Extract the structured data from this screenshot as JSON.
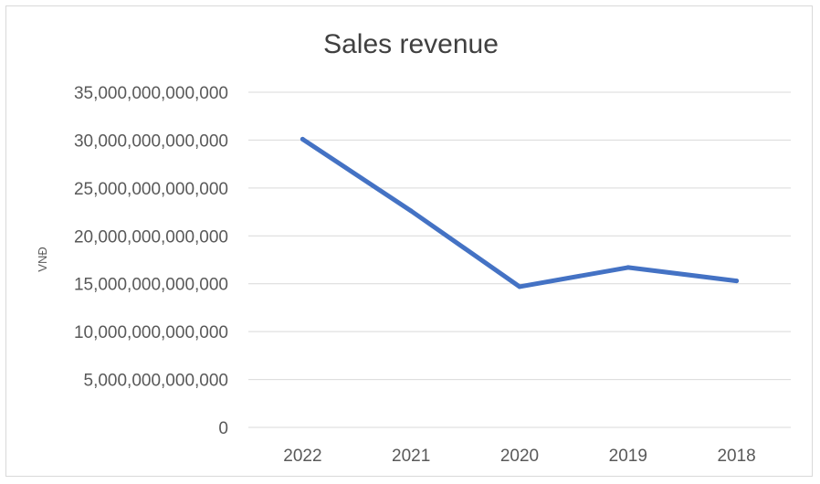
{
  "chart_data": {
    "type": "line",
    "title": "Sales revenue",
    "xlabel": "",
    "ylabel": "VNĐ",
    "categories": [
      "2022",
      "2021",
      "2020",
      "2019",
      "2018"
    ],
    "series": [
      {
        "values": [
          30100000000000,
          22600000000000,
          14700000000000,
          16700000000000,
          15300000000000
        ]
      }
    ],
    "ylim": [
      0,
      35000000000000
    ],
    "y_ticks": [
      {
        "value": 0,
        "label": "0"
      },
      {
        "value": 5000000000000,
        "label": "5,000,000,000,000"
      },
      {
        "value": 10000000000000,
        "label": "10,000,000,000,000"
      },
      {
        "value": 15000000000000,
        "label": "15,000,000,000,000"
      },
      {
        "value": 20000000000000,
        "label": "20,000,000,000,000"
      },
      {
        "value": 25000000000000,
        "label": "25,000,000,000,000"
      },
      {
        "value": 30000000000000,
        "label": "30,000,000,000,000"
      },
      {
        "value": 35000000000000,
        "label": "35,000,000,000,000"
      }
    ],
    "grid": true,
    "legend": "none",
    "line_color": "#4472c4",
    "grid_color": "#d9d9d9"
  }
}
